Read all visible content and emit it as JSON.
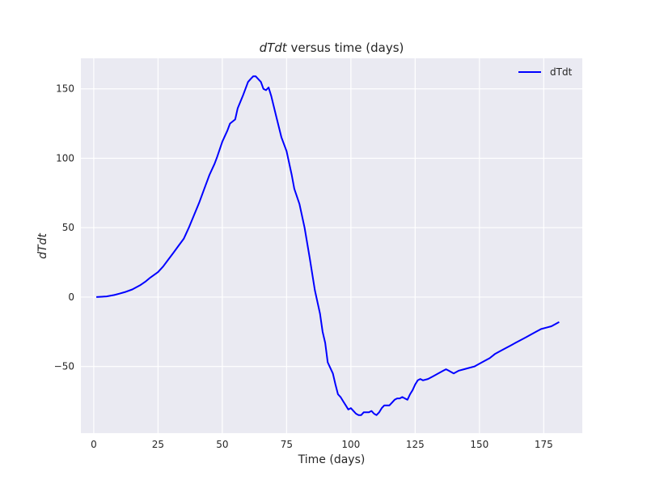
{
  "chart_data": {
    "type": "line",
    "title_italic": "dTdt",
    "title_rest": " versus time (days)",
    "xlabel": "Time (days)",
    "ylabel": "dTdt",
    "xlim": [
      -5,
      190
    ],
    "ylim": [
      -98,
      172
    ],
    "xticks": [
      0,
      25,
      50,
      75,
      100,
      125,
      150,
      175
    ],
    "xtick_labels": [
      "0",
      "25",
      "50",
      "75",
      "100",
      "125",
      "150",
      "175"
    ],
    "yticks": [
      -50,
      0,
      50,
      100,
      150
    ],
    "ytick_labels": [
      "−50",
      "0",
      "50",
      "100",
      "150"
    ],
    "grid": true,
    "legend_position": "top-right",
    "series": [
      {
        "name": "dTdt",
        "color": "#0000ff",
        "x": [
          1,
          5,
          8,
          10,
          12,
          15,
          18,
          20,
          22,
          25,
          27,
          29,
          31,
          33,
          35,
          37,
          39,
          41,
          43,
          45,
          47,
          48,
          50,
          52,
          53,
          55,
          56,
          58,
          60,
          61,
          62,
          63,
          65,
          66,
          67,
          68,
          69,
          71,
          73,
          75,
          77,
          78,
          80,
          82,
          84,
          86,
          88,
          89,
          90,
          91,
          92,
          93,
          94,
          95,
          96,
          97,
          98,
          99,
          100,
          101,
          102,
          103,
          104,
          105,
          106,
          107,
          108,
          109,
          110,
          111,
          112,
          113,
          114,
          115,
          116,
          117,
          118,
          119,
          120,
          121,
          122,
          123,
          124,
          125,
          126,
          127,
          128,
          130,
          132,
          134,
          136,
          137,
          138,
          139,
          140,
          142,
          144,
          146,
          148,
          150,
          152,
          154,
          156,
          158,
          160,
          162,
          164,
          166,
          168,
          170,
          172,
          174,
          176,
          178,
          180,
          181
        ],
        "y": [
          0,
          0.5,
          1.5,
          2.5,
          3.5,
          5.5,
          8.5,
          11,
          14,
          18,
          22,
          27,
          32,
          37,
          42,
          50,
          59,
          68,
          78,
          88,
          96,
          101,
          112,
          120,
          125,
          128,
          136,
          145,
          155,
          157,
          159,
          159,
          155,
          150,
          149,
          151,
          145,
          130,
          115,
          105,
          88,
          78,
          67,
          50,
          28,
          5,
          -12,
          -25,
          -33,
          -47,
          -51,
          -55,
          -63,
          -70,
          -72,
          -75,
          -78,
          -81,
          -80,
          -82,
          -84,
          -85,
          -85,
          -83,
          -83,
          -83,
          -82,
          -84,
          -85,
          -83,
          -80,
          -78,
          -78,
          -78,
          -76,
          -74,
          -73,
          -73,
          -72,
          -73,
          -74,
          -70,
          -67,
          -63,
          -60,
          -59,
          -60,
          -59,
          -57,
          -55,
          -53,
          -52,
          -53,
          -54,
          -55,
          -53,
          -52,
          -51,
          -50,
          -48,
          -46,
          -44,
          -41,
          -39,
          -37,
          -35,
          -33,
          -31,
          -29,
          -27,
          -25,
          -23,
          -22,
          -21,
          -19,
          -18
        ]
      }
    ]
  }
}
